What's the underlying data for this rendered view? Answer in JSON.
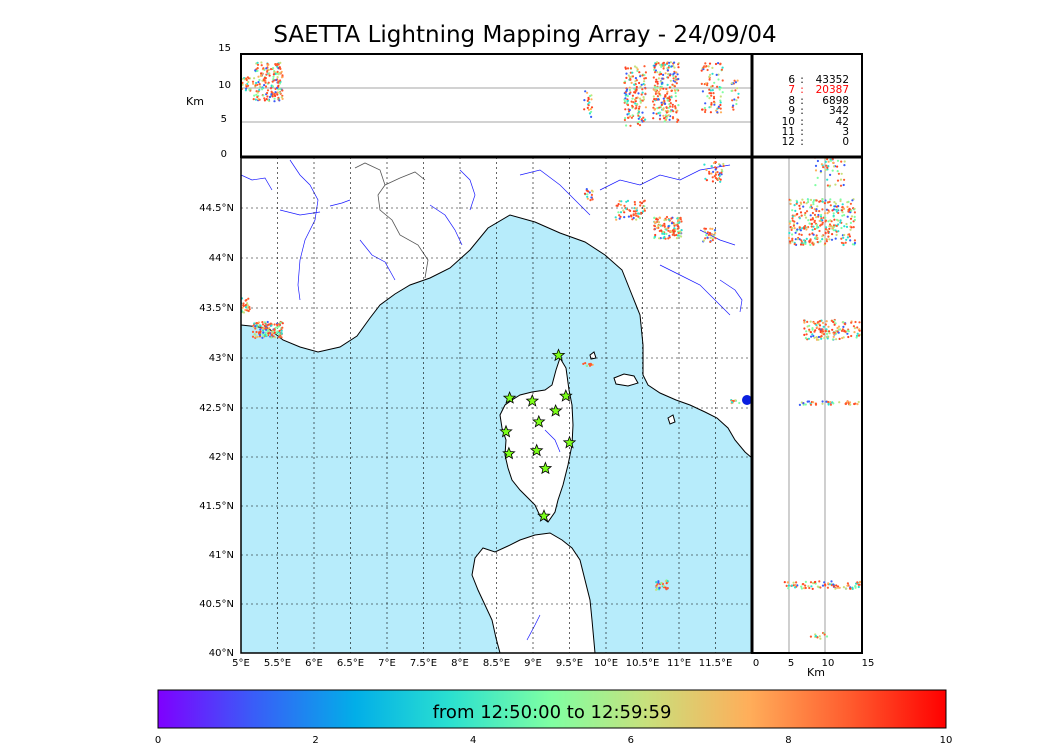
{
  "title": "SAETTA Lightning Mapping Array - 24/09/04",
  "altitude_axis": {
    "label": "Km",
    "ticks": [
      "15",
      "10",
      "5",
      "0"
    ]
  },
  "side_axis": {
    "label": "Km",
    "ticks": [
      "0",
      "5",
      "10",
      "15"
    ]
  },
  "map": {
    "lon_ticks": [
      "5°E",
      "5.5°E",
      "6°E",
      "6.5°E",
      "7°E",
      "7.5°E",
      "8°E",
      "8.5°E",
      "9°E",
      "9.5°E",
      "10°E",
      "10.5°E",
      "11°E",
      "11.5°E"
    ],
    "lat_ticks": [
      "44.5°N",
      "44°N",
      "43.5°N",
      "43°N",
      "42.5°N",
      "42°N",
      "41.5°N",
      "41°N",
      "40.5°N",
      "40°N"
    ],
    "sea_color": "#b7ecfb",
    "coast_color": "#000000",
    "river_color": "#1a1aff",
    "station_marker": "star-icon",
    "station_color": "#7cff1a",
    "stations": [
      {
        "lon": 9.35,
        "lat": 43.0
      },
      {
        "lon": 8.68,
        "lat": 42.57
      },
      {
        "lon": 8.99,
        "lat": 42.54
      },
      {
        "lon": 9.45,
        "lat": 42.59
      },
      {
        "lon": 9.08,
        "lat": 42.33
      },
      {
        "lon": 9.31,
        "lat": 42.44
      },
      {
        "lon": 8.63,
        "lat": 42.23
      },
      {
        "lon": 9.5,
        "lat": 42.12
      },
      {
        "lon": 8.67,
        "lat": 42.01
      },
      {
        "lon": 9.05,
        "lat": 42.04
      },
      {
        "lon": 9.17,
        "lat": 41.86
      },
      {
        "lon": 9.15,
        "lat": 41.38
      }
    ]
  },
  "counts_legend": [
    {
      "level": "6",
      "value": "43352",
      "color": "#000000"
    },
    {
      "level": "7",
      "value": "20387",
      "color": "#ff0000"
    },
    {
      "level": "8",
      "value": "6898",
      "color": "#000000"
    },
    {
      "level": "9",
      "value": "342",
      "color": "#000000"
    },
    {
      "level": "10",
      "value": "42",
      "color": "#000000"
    },
    {
      "level": "11",
      "value": "3",
      "color": "#000000"
    },
    {
      "level": "12",
      "value": "0",
      "color": "#000000"
    }
  ],
  "colorbar": {
    "label": "from 12:50:00 to 12:59:59",
    "ticks": [
      "0",
      "2",
      "4",
      "6",
      "8",
      "10"
    ],
    "colormap": [
      "#7f00ff",
      "#3a5cf8",
      "#02aee8",
      "#2ae0d0",
      "#80ffa2",
      "#c8e07c",
      "#ffae5a",
      "#ff5a2d",
      "#ff0000"
    ]
  }
}
